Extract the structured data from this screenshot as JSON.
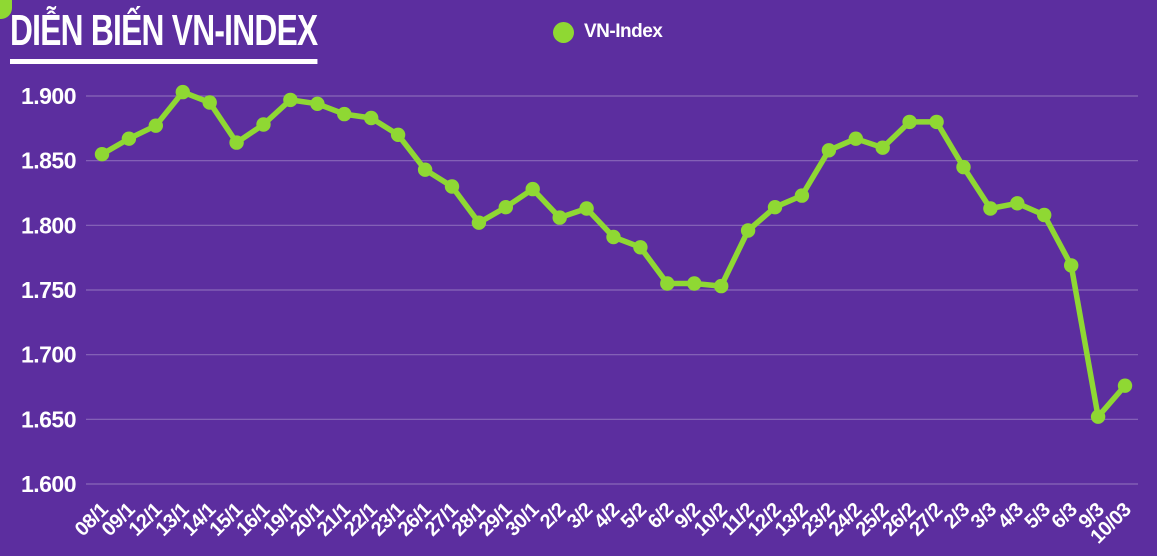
{
  "page": {
    "background_color": "#5C2E9F",
    "text_color": "#FFFFFF",
    "accent_color": "#8FD833"
  },
  "title": {
    "text": "DIỄN BIẾN VN-INDEX"
  },
  "legend": {
    "label": "VN-Index",
    "marker_color": "#8FD833"
  },
  "chart_data": {
    "type": "line",
    "series_name": "VN-Index",
    "categories": [
      "08/1",
      "09/1",
      "12/1",
      "13/1",
      "14/1",
      "15/1",
      "16/1",
      "19/1",
      "20/1",
      "21/1",
      "22/1",
      "23/1",
      "26/1",
      "27/1",
      "28/1",
      "29/1",
      "30/1",
      "2/2",
      "3/2",
      "4/2",
      "5/2",
      "6/2",
      "9/2",
      "10/2",
      "11/2",
      "12/2",
      "13/2",
      "23/2",
      "24/2",
      "25/2",
      "26/2",
      "27/2",
      "2/3",
      "3/3",
      "4/3",
      "5/3",
      "6/3",
      "9/3",
      "10/03"
    ],
    "values": [
      1855,
      1867,
      1877,
      1903,
      1895,
      1864,
      1878,
      1897,
      1894,
      1886,
      1883,
      1870,
      1843,
      1830,
      1802,
      1814,
      1828,
      1806,
      1813,
      1791,
      1783,
      1755,
      1755,
      1753,
      1796,
      1814,
      1823,
      1858,
      1867,
      1860,
      1880,
      1880,
      1845,
      1813,
      1817,
      1808,
      1769,
      1652,
      1676
    ],
    "yticks": [
      1900,
      1850,
      1800,
      1750,
      1700,
      1650,
      1600
    ],
    "ytick_labels": [
      "1.900",
      "1.850",
      "1.800",
      "1.750",
      "1.700",
      "1.650",
      "1.600"
    ],
    "ylim": [
      1600,
      1900
    ],
    "grid": "horizontal",
    "legend_position": "top-center",
    "line_color": "#8FD833",
    "marker": "circle",
    "gridline_color": "rgba(255,255,255,0.28)",
    "xlabel": "",
    "ylabel": ""
  }
}
